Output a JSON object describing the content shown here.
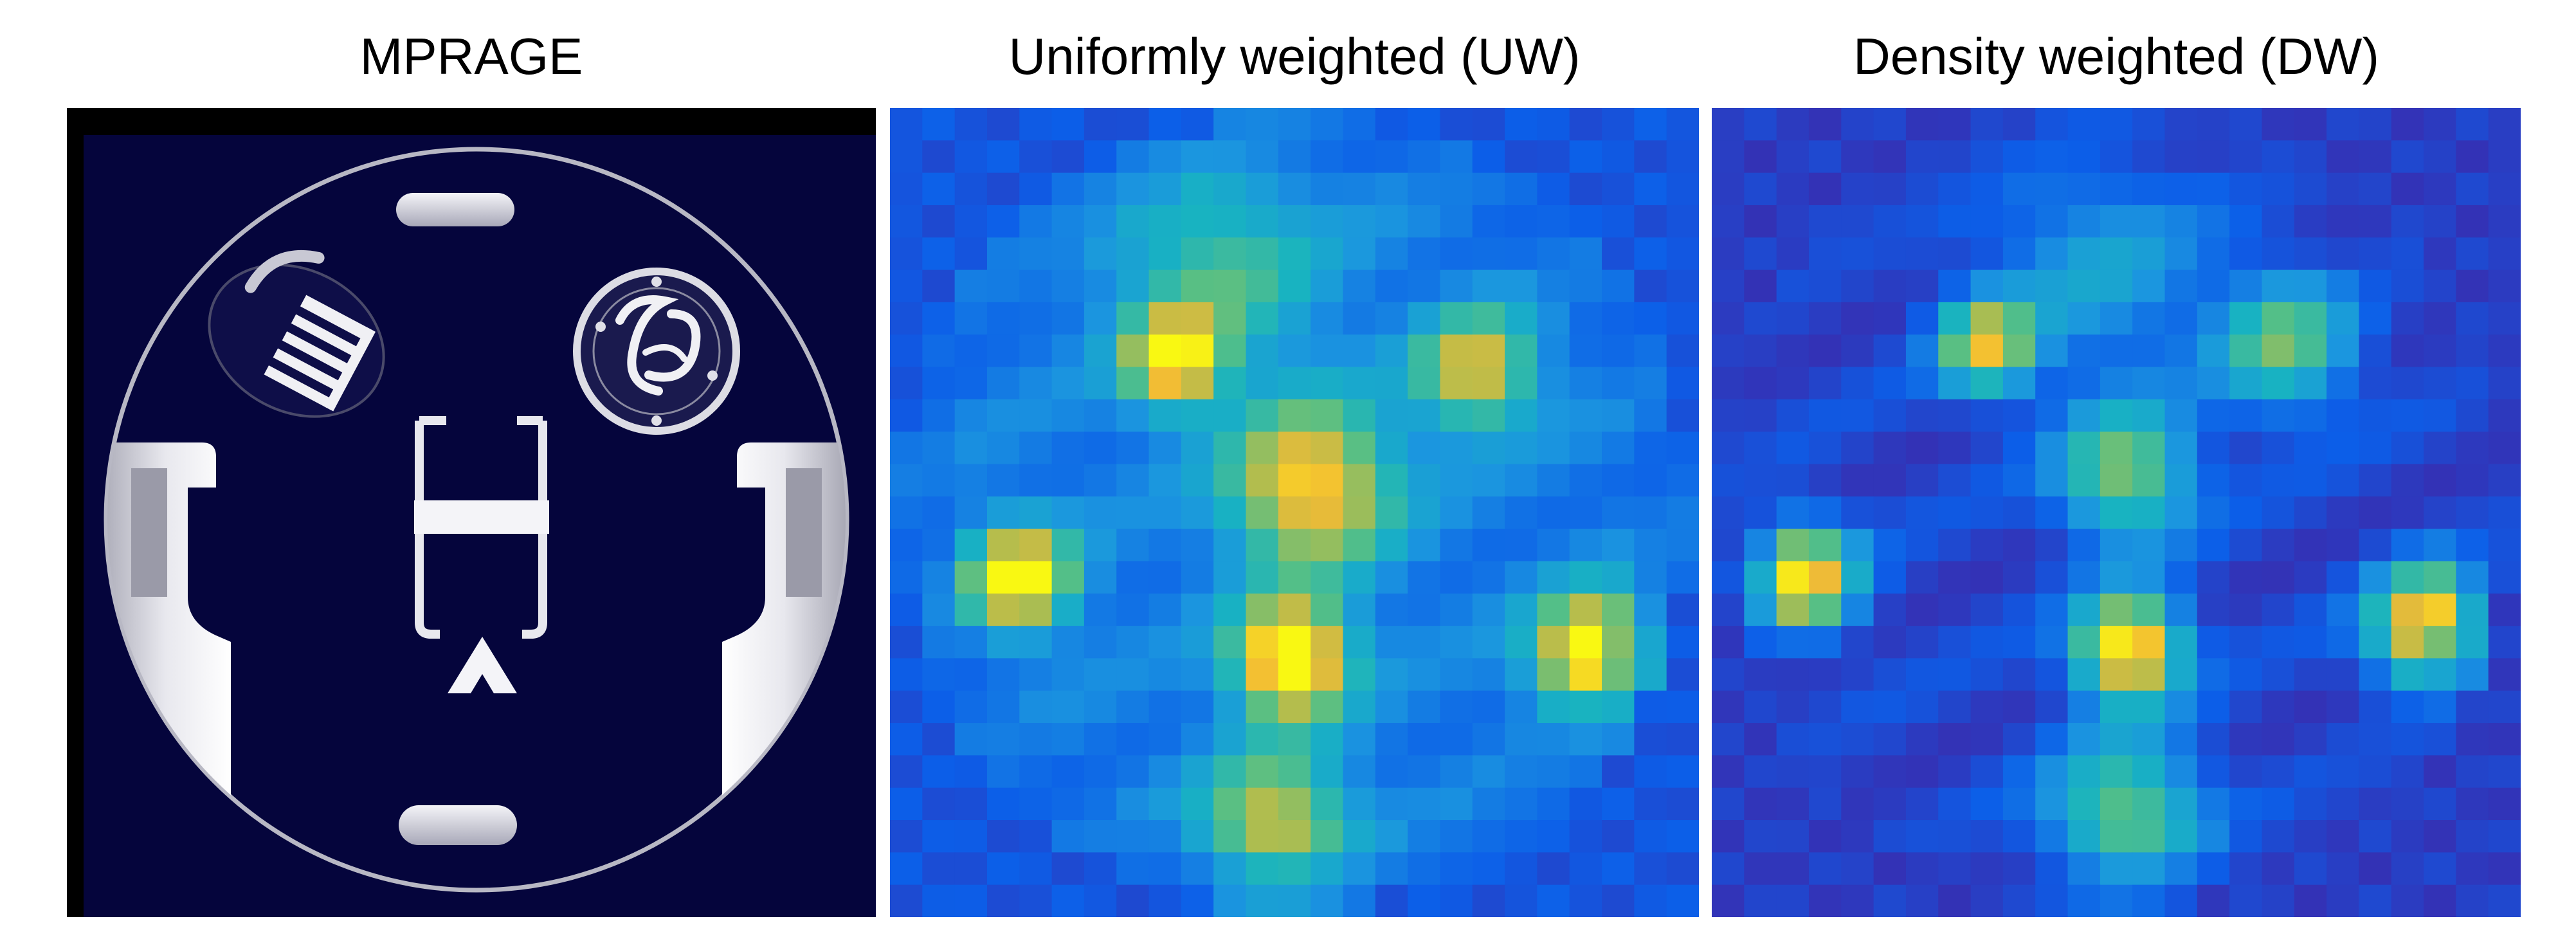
{
  "figure": {
    "panels": [
      {
        "title": "MPRAGE"
      },
      {
        "title": "Uniformly weighted (UW)"
      },
      {
        "title": "Density weighted (DW)"
      }
    ]
  },
  "colors": {
    "mprage_background": "#05053c",
    "uw_background": "#2a46c4",
    "dw_background": "#33268c",
    "colormap": [
      "#3e26a8",
      "#0c5ee8",
      "#1b96df",
      "#18b3c1",
      "#55bf86",
      "#afbd4f",
      "#f2bb35",
      "#f9f812"
    ]
  },
  "maps": {
    "UW": {
      "grid": 25,
      "background_level": 0.22,
      "edge_level": 0.12,
      "blobs": [
        {
          "row": 4.5,
          "col": 9.6,
          "r": 2.2,
          "peak": 0.32
        },
        {
          "row": 7.3,
          "col": 8.3,
          "r": 1.0,
          "peak": 0.78
        },
        {
          "row": 7.6,
          "col": 17.6,
          "r": 1.2,
          "peak": 0.64
        },
        {
          "row": 11.2,
          "col": 12.5,
          "r": 1.7,
          "peak": 0.74
        },
        {
          "row": 14.0,
          "col": 3.5,
          "r": 1.1,
          "peak": 0.84
        },
        {
          "row": 16.5,
          "col": 11.9,
          "r": 1.2,
          "peak": 1.0
        },
        {
          "row": 16.3,
          "col": 21.2,
          "r": 1.2,
          "peak": 0.9
        },
        {
          "row": 21.6,
          "col": 11.4,
          "r": 1.5,
          "peak": 0.58
        }
      ]
    },
    "DW": {
      "grid": 25,
      "background_level": 0.08,
      "edge_level": 0.06,
      "blobs": [
        {
          "row": 4.5,
          "col": 11.5,
          "r": 2.3,
          "peak": 0.25
        },
        {
          "row": 6.8,
          "col": 8.0,
          "r": 1.0,
          "peak": 0.72
        },
        {
          "row": 6.8,
          "col": 17.2,
          "r": 1.4,
          "peak": 0.52
        },
        {
          "row": 10.8,
          "col": 12.3,
          "r": 1.4,
          "peak": 0.58
        },
        {
          "row": 14.0,
          "col": 2.3,
          "r": 1.1,
          "peak": 0.88
        },
        {
          "row": 16.2,
          "col": 12.4,
          "r": 1.1,
          "peak": 1.0
        },
        {
          "row": 15.5,
          "col": 21.7,
          "r": 1.2,
          "peak": 0.94
        },
        {
          "row": 21.3,
          "col": 12.3,
          "r": 1.6,
          "peak": 0.54
        }
      ]
    }
  }
}
